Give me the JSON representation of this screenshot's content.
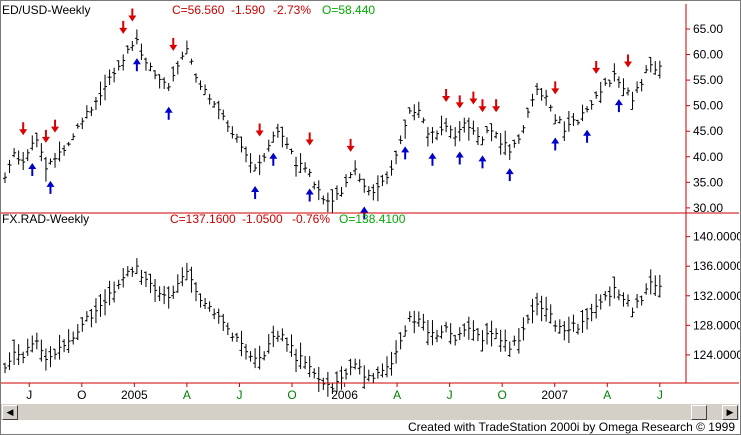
{
  "chart_data": [
    {
      "type": "ohlc-bar",
      "title": "ED/USD-Weekly",
      "readout": {
        "close": "C=56.560",
        "change": "-1.590",
        "change_pct": "-2.73%",
        "open": "O=58.440"
      },
      "yticks": [
        "65.00",
        "60.00",
        "55.00",
        "50.00",
        "45.00",
        "40.00",
        "35.00",
        "30.00"
      ],
      "ytick_values": [
        65,
        60,
        55,
        50,
        45,
        40,
        35,
        30
      ],
      "ylim": [
        29,
        69.5
      ],
      "up_arrows_x_weeks": [
        6,
        10,
        29,
        36,
        55,
        59,
        67,
        79,
        88,
        94,
        100,
        105,
        111,
        121,
        128,
        135
      ],
      "down_arrows_x_weeks": [
        4,
        9,
        11,
        26,
        28,
        37,
        56,
        67,
        76,
        97,
        100,
        103,
        105,
        108,
        121,
        130,
        137
      ]
    },
    {
      "type": "ohlc-bar",
      "title": "FX.RAD-Weekly",
      "readout": {
        "close": "C=137.1600",
        "change": "-1.0500",
        "change_pct": "-0.76%",
        "open": "O=138.4100"
      },
      "yticks": [
        "140.0000",
        "136.0000",
        "132.0000",
        "128.0000",
        "124.0000"
      ],
      "ytick_values": [
        140,
        136,
        132,
        128,
        124
      ],
      "ylim": [
        120.2,
        143.2
      ]
    }
  ],
  "price_series": {
    "anchors": [
      [
        0,
        36.0
      ],
      [
        2,
        40.5
      ],
      [
        4,
        39.5
      ],
      [
        7,
        44.0
      ],
      [
        9,
        38.0
      ],
      [
        12,
        41.0
      ],
      [
        15,
        44.0
      ],
      [
        18,
        48.5
      ],
      [
        21,
        52.0
      ],
      [
        24,
        57.0
      ],
      [
        27,
        60.5
      ],
      [
        29,
        63.0
      ],
      [
        31,
        58.0
      ],
      [
        34,
        55.5
      ],
      [
        36,
        53.5
      ],
      [
        38,
        58.5
      ],
      [
        40,
        61.0
      ],
      [
        42,
        56.0
      ],
      [
        44,
        53.0
      ],
      [
        46,
        51.0
      ],
      [
        49,
        46.5
      ],
      [
        52,
        42.0
      ],
      [
        55,
        38.0
      ],
      [
        57,
        40.5
      ],
      [
        59,
        44.5
      ],
      [
        61,
        44.0
      ],
      [
        64,
        38.5
      ],
      [
        67,
        37.5
      ],
      [
        69,
        33.0
      ],
      [
        71,
        31.0
      ],
      [
        73,
        32.0
      ],
      [
        75,
        35.0
      ],
      [
        77,
        37.5
      ],
      [
        79,
        34.0
      ],
      [
        81,
        33.0
      ],
      [
        83,
        36.0
      ],
      [
        85,
        37.0
      ],
      [
        87,
        43.0
      ],
      [
        89,
        48.5
      ],
      [
        91,
        49.5
      ],
      [
        93,
        44.5
      ],
      [
        95,
        44.5
      ],
      [
        97,
        46.0
      ],
      [
        99,
        43.5
      ],
      [
        101,
        46.0
      ],
      [
        103,
        45.5
      ],
      [
        105,
        44.0
      ],
      [
        107,
        45.0
      ],
      [
        109,
        43.0
      ],
      [
        111,
        41.5
      ],
      [
        113,
        44.0
      ],
      [
        115,
        48.0
      ],
      [
        117,
        53.0
      ],
      [
        119,
        52.0
      ],
      [
        121,
        47.5
      ],
      [
        123,
        45.5
      ],
      [
        125,
        46.5
      ],
      [
        128,
        49.0
      ],
      [
        130,
        51.5
      ],
      [
        132,
        54.0
      ],
      [
        134,
        56.0
      ],
      [
        136,
        54.0
      ],
      [
        138,
        51.5
      ],
      [
        140,
        54.0
      ],
      [
        142,
        58.5
      ],
      [
        144,
        57.0
      ]
    ]
  },
  "x_axis": {
    "labels": [
      {
        "text": "J",
        "week": 6,
        "color": "#000000"
      },
      {
        "text": "O",
        "week": 19,
        "color": "#000000"
      },
      {
        "text": "2005",
        "week": 32,
        "color": "#000000"
      },
      {
        "text": "A",
        "week": 45,
        "color": "#008000"
      },
      {
        "text": "J",
        "week": 58,
        "color": "#008000"
      },
      {
        "text": "O",
        "week": 71,
        "color": "#008000"
      },
      {
        "text": "2006",
        "week": 84,
        "color": "#000000"
      },
      {
        "text": "A",
        "week": 97,
        "color": "#008000"
      },
      {
        "text": "J",
        "week": 110,
        "color": "#008000"
      },
      {
        "text": "O",
        "week": 123,
        "color": "#008000"
      },
      {
        "text": "2007",
        "week": 136,
        "color": "#000000"
      },
      {
        "text": "A",
        "week": 149,
        "color": "#008000"
      },
      {
        "text": "J",
        "week": 162,
        "color": "#008000"
      }
    ]
  },
  "colors": {
    "axis": "#cc0000",
    "bars": "#000000",
    "readout_red": "#cc0000",
    "readout_green": "#00aa00",
    "up_arrow": "#0000cc",
    "down_arrow": "#dd0000"
  },
  "footer": {
    "credit": "Created with TradeStation 2000i by Omega Research © 1999"
  }
}
